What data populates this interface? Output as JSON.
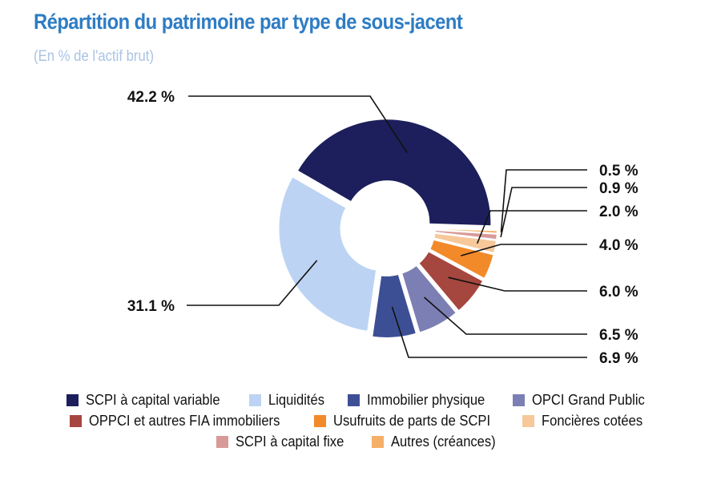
{
  "title": "Répartition du patrimoine par type de sous-jacent",
  "subtitle": "(En % de l'actif brut)",
  "chart_data": {
    "type": "pie",
    "variant": "donut",
    "unit": "%",
    "legend_position": "bottom",
    "slices": [
      {
        "name": "SCPI à capital variable",
        "value": 42.2,
        "label": "42.2 %",
        "color": "#1c1f5b"
      },
      {
        "name": "Autres (créances)",
        "value": 0.5,
        "label": "0.5 %",
        "color": "#f4b067"
      },
      {
        "name": "SCPI à capital fixe",
        "value": 0.9,
        "label": "0.9 %",
        "color": "#d89a98"
      },
      {
        "name": "Foncières cotées",
        "value": 2.0,
        "label": "2.0 %",
        "color": "#f6c89a"
      },
      {
        "name": "Usufruits de parts de SCPI",
        "value": 4.0,
        "label": "4.0 %",
        "color": "#f28a2a"
      },
      {
        "name": "OPPCI et autres FIA immobiliers",
        "value": 6.0,
        "label": "6.0 %",
        "color": "#a5463f"
      },
      {
        "name": "OPCI Grand Public",
        "value": 6.5,
        "label": "6.5 %",
        "color": "#7c7fb3"
      },
      {
        "name": "Immobilier physique",
        "value": 6.9,
        "label": "6.9 %",
        "color": "#3d4f94"
      },
      {
        "name": "Liquidités",
        "value": 31.1,
        "label": "31.1 %",
        "color": "#bdd3f3"
      }
    ],
    "legend_rows": [
      [
        "SCPI à capital variable",
        "Liquidités",
        "Immobilier physique",
        "OPCI Grand Public"
      ],
      [
        "OPPCI et autres FIA immobiliers",
        "Usufruits de parts de SCPI",
        "Foncières cotées"
      ],
      [
        "SCPI à capital fixe",
        "Autres (créances)"
      ]
    ]
  }
}
